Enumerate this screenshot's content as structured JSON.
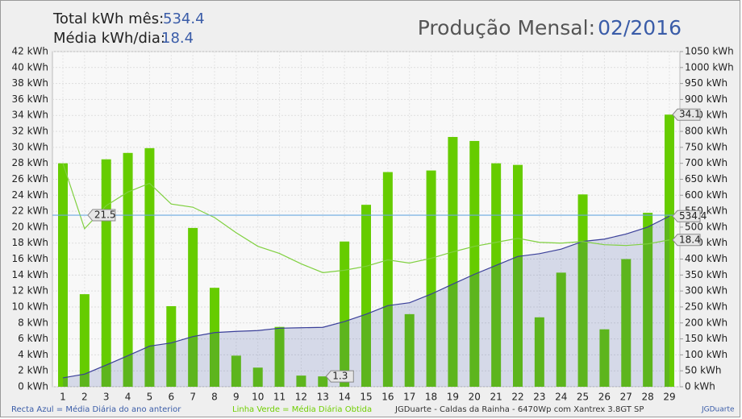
{
  "chart_data": {
    "type": "bar",
    "header": {
      "total_label": "Total kWh mês:",
      "total_value": 534.4,
      "avg_label": "Média kWh/dia:",
      "avg_value": 18.4,
      "title": "Produção Mensal:",
      "period": "02/2016"
    },
    "categories": [
      "1",
      "2",
      "3",
      "4",
      "5",
      "6",
      "7",
      "8",
      "9",
      "10",
      "11",
      "12",
      "13",
      "14",
      "15",
      "16",
      "17",
      "18",
      "19",
      "20",
      "21",
      "22",
      "23",
      "24",
      "25",
      "26",
      "27",
      "28",
      "29"
    ],
    "series": [
      {
        "type": "bar",
        "color": "#66cc00",
        "values": [
          28.0,
          11.6,
          28.5,
          29.3,
          29.9,
          10.1,
          19.9,
          12.4,
          3.9,
          2.4,
          7.5,
          1.4,
          1.3,
          18.2,
          22.8,
          26.9,
          9.1,
          27.1,
          31.3,
          30.8,
          28.0,
          27.8,
          8.7,
          14.3,
          24.1,
          7.2,
          16.0,
          21.8,
          34.1
        ]
      },
      {
        "type": "area",
        "axis": "y2",
        "color": "#3a3f99",
        "values": [
          28.0,
          39.6,
          68.1,
          97.4,
          127.3,
          137.4,
          157.3,
          169.7,
          173.6,
          176.0,
          183.5,
          184.9,
          186.2,
          204.4,
          227.2,
          254.1,
          263.2,
          290.3,
          321.6,
          352.4,
          380.4,
          408.2,
          416.9,
          431.2,
          455.3,
          462.5,
          478.5,
          500.3,
          534.4
        ]
      },
      {
        "type": "line",
        "color": "#80d040",
        "values": [
          28.0,
          19.8,
          22.7,
          24.4,
          25.5,
          22.9,
          22.5,
          21.2,
          19.3,
          17.6,
          16.7,
          15.4,
          14.3,
          14.6,
          15.1,
          15.9,
          15.5,
          16.1,
          16.9,
          17.6,
          18.1,
          18.6,
          18.1,
          18.0,
          18.2,
          17.8,
          17.7,
          17.9,
          18.4
        ]
      }
    ],
    "reference_line": {
      "value": 21.5,
      "color": "#6aa8e0"
    },
    "ylim": [
      0,
      42
    ],
    "yticks": [
      {
        "value": 0,
        "label": "0 kWh"
      },
      {
        "value": 2,
        "label": "2 kWh"
      },
      {
        "value": 4,
        "label": "4 kWh"
      },
      {
        "value": 6,
        "label": "6 kWh"
      },
      {
        "value": 8,
        "label": "8 kWh"
      },
      {
        "value": 10,
        "label": "10 kWh"
      },
      {
        "value": 12,
        "label": "12 kWh"
      },
      {
        "value": 14,
        "label": "14 kWh"
      },
      {
        "value": 16,
        "label": "16 kWh"
      },
      {
        "value": 18,
        "label": "18 kWh"
      },
      {
        "value": 20,
        "label": "20 kWh"
      },
      {
        "value": 22,
        "label": "22 kWh"
      },
      {
        "value": 24,
        "label": "24 kWh"
      },
      {
        "value": 26,
        "label": "26 kWh"
      },
      {
        "value": 28,
        "label": "28 kWh"
      },
      {
        "value": 30,
        "label": "30 kWh"
      },
      {
        "value": 32,
        "label": "32 kWh"
      },
      {
        "value": 34,
        "label": "34 kWh"
      },
      {
        "value": 36,
        "label": "36 kWh"
      },
      {
        "value": 38,
        "label": "38 kWh"
      },
      {
        "value": 40,
        "label": "40 kWh"
      },
      {
        "value": 42,
        "label": "42 kWh"
      }
    ],
    "y2lim": [
      0,
      1050
    ],
    "y2ticks": [
      {
        "value": 0,
        "label": "0 kWh"
      },
      {
        "value": 50,
        "label": "50 kWh"
      },
      {
        "value": 100,
        "label": "100 kWh"
      },
      {
        "value": 150,
        "label": "150 kWh"
      },
      {
        "value": 200,
        "label": "200 kWh"
      },
      {
        "value": 250,
        "label": "250 kWh"
      },
      {
        "value": 300,
        "label": "300 kWh"
      },
      {
        "value": 350,
        "label": "350 kWh"
      },
      {
        "value": 400,
        "label": "400 kWh"
      },
      {
        "value": 450,
        "label": "450 kWh"
      },
      {
        "value": 500,
        "label": "500 kWh"
      },
      {
        "value": 550,
        "label": "550 kWh"
      },
      {
        "value": 600,
        "label": "600 kWh"
      },
      {
        "value": 650,
        "label": "650 kWh"
      },
      {
        "value": 700,
        "label": "700 kWh"
      },
      {
        "value": 750,
        "label": "750 kWh"
      },
      {
        "value": 800,
        "label": "800 kWh"
      },
      {
        "value": 850,
        "label": "850 kWh"
      },
      {
        "value": 900,
        "label": "900 kWh"
      },
      {
        "value": 950,
        "label": "950 kWh"
      },
      {
        "value": 1000,
        "label": "1000 kWh"
      },
      {
        "value": 1050,
        "label": "1050 kWh"
      }
    ],
    "grid": true,
    "footer": {
      "blue_note": "Recta Azul = Média Diária do ano anterior",
      "green_note": "Linha Verde = Média Diária Obtida",
      "credit": "JGDuarte  -  Caldas da Rainha  -  6470Wp com Xantrex 3.8GT SP",
      "author": "JGDuarte"
    }
  }
}
